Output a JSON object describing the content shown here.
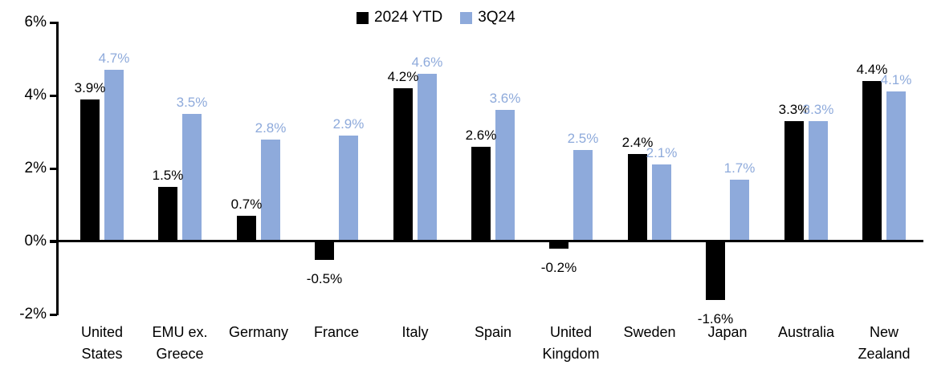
{
  "chart_data": {
    "type": "bar",
    "title": "",
    "categories": [
      "United States",
      "EMU ex. Greece",
      "Germany",
      "France",
      "Italy",
      "Spain",
      "United Kingdom",
      "Sweden",
      "Japan",
      "Australia",
      "New Zealand"
    ],
    "series": [
      {
        "name": "2024 YTD",
        "color": "#000000",
        "values": [
          3.9,
          1.5,
          0.7,
          -0.5,
          4.2,
          2.6,
          -0.2,
          2.4,
          -1.6,
          3.3,
          4.4
        ]
      },
      {
        "name": "3Q24",
        "color": "#8EAADB",
        "values": [
          4.7,
          3.5,
          2.8,
          2.9,
          4.6,
          3.6,
          2.5,
          2.1,
          1.7,
          3.3,
          4.1
        ]
      }
    ],
    "value_suffix": "%",
    "y_tick_labels": [
      "6%",
      "4%",
      "2%",
      "0%",
      "-2%"
    ],
    "y_tick_values": [
      6,
      4,
      2,
      0,
      -2
    ],
    "ylim": [
      -2,
      6
    ],
    "grid": false,
    "legend_position": "top-center",
    "data_label_colors": [
      "#000000",
      "#8EAADB"
    ]
  }
}
